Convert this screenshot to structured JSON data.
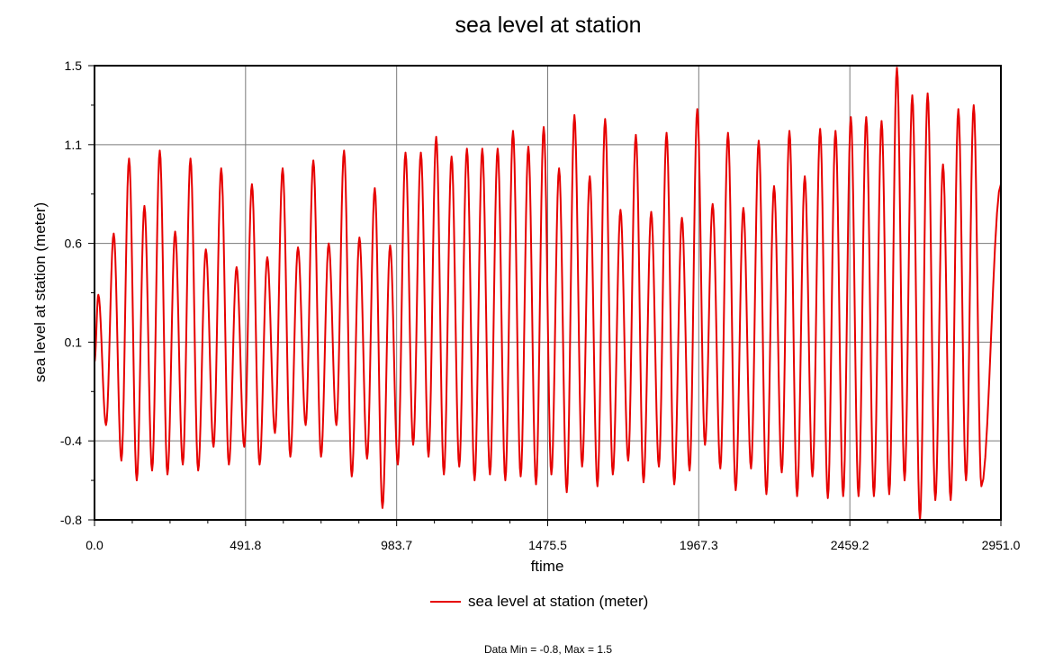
{
  "chart_data": {
    "type": "line",
    "title": "sea level at station",
    "xlabel": "ftime",
    "ylabel": "sea level at station (meter)",
    "xlim": [
      0.0,
      2951.0
    ],
    "ylim": [
      -0.8,
      1.5
    ],
    "x_ticks": [
      "0.0",
      "491.8",
      "983.7",
      "1475.5",
      "1967.3",
      "2459.2",
      "2951.0"
    ],
    "y_ticks": [
      "1.5",
      "1.1",
      "0.6",
      "0.1",
      "-0.4",
      "-0.8"
    ],
    "x_tick_values": [
      0.0,
      491.8,
      983.7,
      1475.5,
      1967.3,
      2459.2,
      2951.0
    ],
    "y_tick_values": [
      1.5,
      1.1,
      0.6,
      0.1,
      -0.4,
      -0.8
    ],
    "grid": true,
    "legend_position": "bottom-center",
    "series": [
      {
        "name": "sea level at station (meter)",
        "color": "#e60000",
        "cycle_period": 50,
        "start_value": 0.0,
        "cycles": [
          [
            0.34,
            -0.32
          ],
          [
            0.65,
            -0.5
          ],
          [
            1.03,
            -0.6
          ],
          [
            0.79,
            -0.55
          ],
          [
            1.07,
            -0.57
          ],
          [
            0.66,
            -0.52
          ],
          [
            1.03,
            -0.55
          ],
          [
            0.57,
            -0.43
          ],
          [
            0.98,
            -0.52
          ],
          [
            0.48,
            -0.43
          ],
          [
            0.9,
            -0.52
          ],
          [
            0.53,
            -0.36
          ],
          [
            0.98,
            -0.48
          ],
          [
            0.58,
            -0.32
          ],
          [
            1.02,
            -0.48
          ],
          [
            0.6,
            -0.32
          ],
          [
            1.07,
            -0.58
          ],
          [
            0.63,
            -0.49
          ],
          [
            0.88,
            -0.74
          ],
          [
            0.59,
            -0.52
          ],
          [
            1.06,
            -0.42
          ],
          [
            1.06,
            -0.48
          ],
          [
            1.14,
            -0.57
          ],
          [
            1.04,
            -0.53
          ],
          [
            1.08,
            -0.6
          ],
          [
            1.08,
            -0.57
          ],
          [
            1.08,
            -0.6
          ],
          [
            1.17,
            -0.58
          ],
          [
            1.09,
            -0.62
          ],
          [
            1.19,
            -0.57
          ],
          [
            0.98,
            -0.66
          ],
          [
            1.25,
            -0.53
          ],
          [
            0.94,
            -0.63
          ],
          [
            1.23,
            -0.57
          ],
          [
            0.77,
            -0.5
          ],
          [
            1.15,
            -0.61
          ],
          [
            0.76,
            -0.53
          ],
          [
            1.16,
            -0.62
          ],
          [
            0.73,
            -0.55
          ],
          [
            1.28,
            -0.42
          ],
          [
            0.8,
            -0.54
          ],
          [
            1.16,
            -0.65
          ],
          [
            0.78,
            -0.54
          ],
          [
            1.12,
            -0.67
          ],
          [
            0.89,
            -0.56
          ],
          [
            1.17,
            -0.68
          ],
          [
            0.94,
            -0.58
          ],
          [
            1.18,
            -0.69
          ],
          [
            1.17,
            -0.68
          ],
          [
            1.24,
            -0.68
          ],
          [
            1.24,
            -0.68
          ],
          [
            1.22,
            -0.67
          ],
          [
            1.49,
            -0.6
          ],
          [
            1.35,
            -0.8
          ],
          [
            1.36,
            -0.7
          ],
          [
            1.0,
            -0.7
          ],
          [
            1.28,
            -0.6
          ],
          [
            1.3,
            -0.63
          ]
        ],
        "end_value": 0.9
      }
    ]
  },
  "footer": {
    "stats": "Data Min = -0.8, Max = 1.5"
  }
}
